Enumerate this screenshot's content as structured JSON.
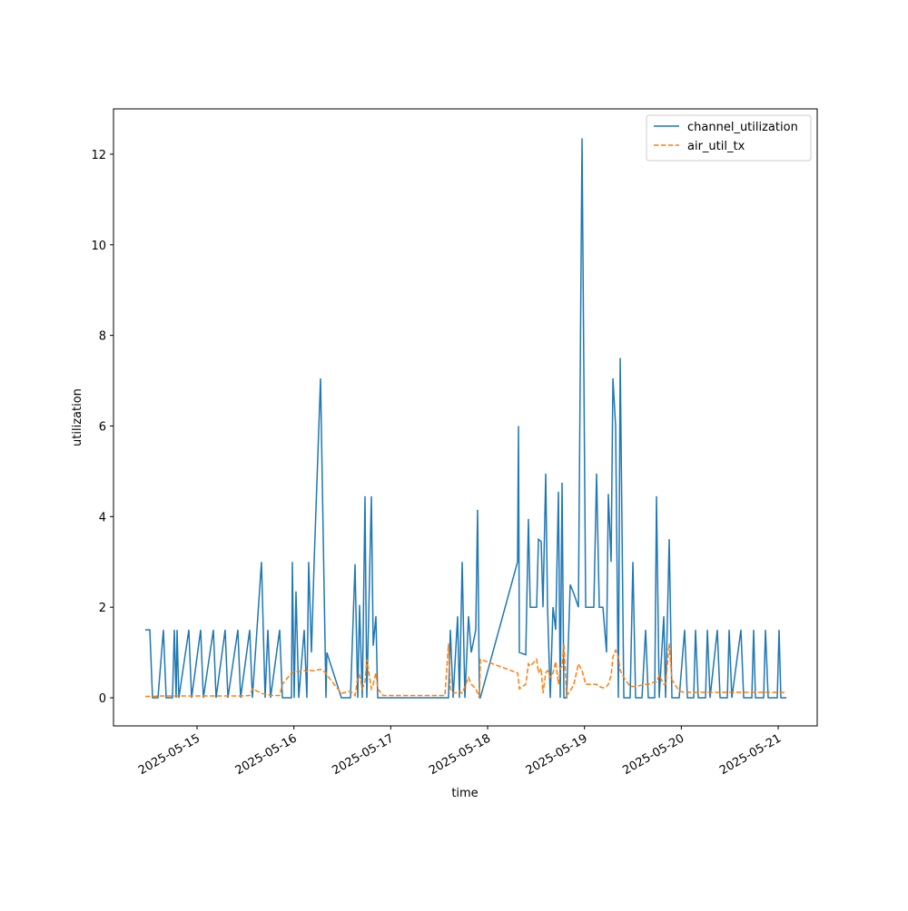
{
  "chart_data": {
    "type": "line",
    "xlabel": "time",
    "ylabel": "utilization",
    "x": [
      "2025-05-14 11:10",
      "2025-05-14 12:18",
      "2025-05-14 12:58",
      "2025-05-14 14:19",
      "2025-05-14 15:40",
      "2025-05-14 16:21",
      "2025-05-14 17:55",
      "2025-05-14 18:22",
      "2025-05-14 18:49",
      "2025-05-14 19:03",
      "2025-05-14 19:30",
      "2025-05-14 21:58",
      "2025-05-14 22:39",
      "2025-05-15 00:54",
      "2025-05-15 01:34",
      "2025-05-15 04:03",
      "2025-05-15 04:43",
      "2025-05-15 06:58",
      "2025-05-15 07:39",
      "2025-05-15 10:07",
      "2025-05-15 10:48",
      "2025-05-15 13:03",
      "2025-05-15 13:43",
      "2025-05-15 15:58",
      "2025-05-15 16:52",
      "2025-05-15 17:33",
      "2025-05-15 18:13",
      "2025-05-15 20:28",
      "2025-05-15 21:09",
      "2025-05-15 23:24",
      "2025-05-15 23:37",
      "2025-05-16 00:04",
      "2025-05-16 00:31",
      "2025-05-16 01:12",
      "2025-05-16 02:33",
      "2025-05-16 03:13",
      "2025-05-16 03:40",
      "2025-05-16 04:21",
      "2025-05-16 05:01",
      "2025-05-16 06:36",
      "2025-05-16 07:57",
      "2025-05-16 08:10",
      "2025-05-16 11:46",
      "2025-05-16 14:01",
      "2025-05-16 15:09",
      "2025-05-16 15:49",
      "2025-05-16 16:16",
      "2025-05-16 16:57",
      "2025-05-16 17:37",
      "2025-05-16 18:04",
      "2025-05-16 19:12",
      "2025-05-16 19:39",
      "2025-05-16 20:19",
      "2025-05-16 20:46",
      "2025-05-16 22:07",
      "2025-05-17 13:25",
      "2025-05-17 14:19",
      "2025-05-17 14:46",
      "2025-05-17 15:27",
      "2025-05-17 16:34",
      "2025-05-17 17:01",
      "2025-05-17 17:42",
      "2025-05-17 18:22",
      "2025-05-17 19:16",
      "2025-05-17 19:57",
      "2025-05-17 21:04",
      "2025-05-17 21:31",
      "2025-05-17 21:58",
      "2025-05-17 22:12",
      "2025-05-18 07:25",
      "2025-05-18 07:39",
      "2025-05-18 07:52",
      "2025-05-18 09:27",
      "2025-05-18 10:07",
      "2025-05-18 10:34",
      "2025-05-18 12:09",
      "2025-05-18 12:36",
      "2025-05-18 13:16",
      "2025-05-18 13:43",
      "2025-05-18 14:24",
      "2025-05-18 14:51",
      "2025-05-18 15:31",
      "2025-05-18 16:12",
      "2025-05-18 16:52",
      "2025-05-18 17:33",
      "2025-05-18 18:00",
      "2025-05-18 18:27",
      "2025-05-18 18:54",
      "2025-05-18 19:34",
      "2025-05-18 20:28",
      "2025-05-18 21:22",
      "2025-05-18 22:30",
      "2025-05-18 23:24",
      "2025-05-19 00:18",
      "2025-05-19 02:19",
      "2025-05-19 03:00",
      "2025-05-19 03:40",
      "2025-05-19 04:34",
      "2025-05-19 05:28",
      "2025-05-19 05:55",
      "2025-05-19 06:36",
      "2025-05-19 07:03",
      "2025-05-19 07:43",
      "2025-05-19 08:24",
      "2025-05-19 08:51",
      "2025-05-19 09:45",
      "2025-05-19 11:19",
      "2025-05-19 12:00",
      "2025-05-19 12:40",
      "2025-05-19 14:15",
      "2025-05-19 15:09",
      "2025-05-19 15:49",
      "2025-05-19 17:24",
      "2025-05-19 17:51",
      "2025-05-19 18:31",
      "2025-05-19 19:39",
      "2025-05-19 20:06",
      "2025-05-19 21:00",
      "2025-05-19 21:40",
      "2025-05-19 23:28",
      "2025-05-20 00:49",
      "2025-05-20 01:30",
      "2025-05-20 03:04",
      "2025-05-20 03:31",
      "2025-05-20 04:12",
      "2025-05-20 06:00",
      "2025-05-20 06:27",
      "2025-05-20 07:07",
      "2025-05-20 08:55",
      "2025-05-20 09:36",
      "2025-05-20 11:24",
      "2025-05-20 11:51",
      "2025-05-20 12:31",
      "2025-05-20 14:46",
      "2025-05-20 15:27",
      "2025-05-20 17:28",
      "2025-05-20 17:55",
      "2025-05-20 18:22",
      "2025-05-20 20:24",
      "2025-05-20 20:51",
      "2025-05-20 21:31",
      "2025-05-20 23:46",
      "2025-05-21 00:13",
      "2025-05-21 00:40",
      "2025-05-21 02:01"
    ],
    "series": [
      {
        "name": "channel_utilization",
        "color": "#1f77b4",
        "linestyle": "solid",
        "values": [
          1.5,
          1.5,
          0,
          0,
          1.5,
          0,
          0,
          1.5,
          0,
          1.5,
          0,
          1.5,
          0,
          1.5,
          0,
          1.5,
          0,
          1.5,
          0,
          1.5,
          0,
          1.5,
          0,
          3.0,
          0,
          1.5,
          0,
          1.5,
          0,
          0,
          3.0,
          0,
          2.35,
          0,
          1.5,
          0,
          3.0,
          1.0,
          3.0,
          7.05,
          0,
          1.0,
          0,
          0,
          2.95,
          0,
          2.05,
          0,
          4.45,
          0,
          4.45,
          1.15,
          1.8,
          0,
          0,
          0,
          0,
          1.5,
          0,
          1.8,
          0,
          3.0,
          0,
          1.8,
          1.0,
          1.5,
          4.15,
          0,
          0,
          3.0,
          6.0,
          1.0,
          0.95,
          3.95,
          2.0,
          2.0,
          3.5,
          3.45,
          2.0,
          4.95,
          2.0,
          0,
          2.0,
          1.5,
          4.55,
          0,
          4.75,
          0,
          0,
          2.5,
          2.3,
          2.0,
          12.35,
          2.0,
          2.0,
          4.95,
          2.0,
          2.0,
          1.0,
          4.5,
          3.0,
          7.05,
          6.0,
          0,
          7.5,
          0,
          0,
          3.0,
          0,
          0,
          1.5,
          0,
          0,
          4.45,
          0,
          1.8,
          0,
          3.5,
          0,
          0,
          1.5,
          0,
          0,
          1.5,
          0,
          0,
          1.5,
          0,
          1.5,
          0,
          0,
          1.5,
          0,
          1.5,
          0,
          0,
          1.5,
          0,
          0,
          1.5,
          0,
          0,
          1.5,
          0,
          0
        ]
      },
      {
        "name": "air_util_tx",
        "color": "#ff7f0e",
        "linestyle": "dashed",
        "values": [
          0.03,
          0.03,
          0.03,
          0.04,
          0.04,
          0.04,
          0.04,
          0.04,
          0.04,
          0.04,
          0.04,
          0.04,
          0.04,
          0.04,
          0.04,
          0.04,
          0.04,
          0.04,
          0.04,
          0.04,
          0.04,
          0.05,
          0.2,
          0.1,
          0.08,
          0.08,
          0.05,
          0.05,
          0.3,
          0.55,
          0.55,
          0.58,
          0.58,
          0.58,
          0.6,
          0.58,
          0.62,
          0.6,
          0.6,
          0.63,
          0.55,
          0.5,
          0.1,
          0.15,
          0.05,
          0.45,
          0.5,
          0.2,
          0.35,
          0.85,
          0.2,
          0.3,
          0.55,
          0.2,
          0.05,
          0.05,
          1.2,
          0.2,
          0.1,
          0.12,
          0.15,
          0.1,
          0.25,
          0.45,
          0.3,
          0.2,
          0.1,
          0.0,
          0.85,
          0.55,
          0.4,
          0.2,
          0.3,
          0.75,
          0.7,
          0.85,
          0.55,
          0.65,
          0.1,
          0.55,
          0.6,
          0.45,
          0.55,
          0.8,
          0.3,
          0.65,
          0.7,
          1.2,
          0.05,
          0.15,
          0.3,
          0.75,
          0.6,
          0.3,
          0.3,
          0.3,
          0.25,
          0.22,
          0.25,
          0.3,
          0.5,
          0.9,
          1.05,
          0.9,
          0.6,
          0.45,
          0.25,
          0.25,
          0.25,
          0.28,
          0.3,
          0.3,
          0.35,
          0.35,
          0.5,
          0.3,
          0.3,
          1.2,
          0.4,
          0.15,
          0.12,
          0.12,
          0.12,
          0.12,
          0.12,
          0.12,
          0.12,
          0.12,
          0.12,
          0.12,
          0.12,
          0.12,
          0.12,
          0.12,
          0.12,
          0.12,
          0.12,
          0.12,
          0.12,
          0.12,
          0.12,
          0.12,
          0.12,
          0.12,
          0.12
        ]
      }
    ],
    "xlim": [
      "2025-05-14 03:18",
      "2025-05-21 09:40"
    ],
    "xticks": [
      "2025-05-15",
      "2025-05-16",
      "2025-05-17",
      "2025-05-18",
      "2025-05-19",
      "2025-05-20",
      "2025-05-21"
    ],
    "ylim": [
      -0.62,
      13.0
    ],
    "yticks": [
      0,
      2,
      4,
      6,
      8,
      10,
      12
    ],
    "legend": "upper right",
    "grid": false
  }
}
